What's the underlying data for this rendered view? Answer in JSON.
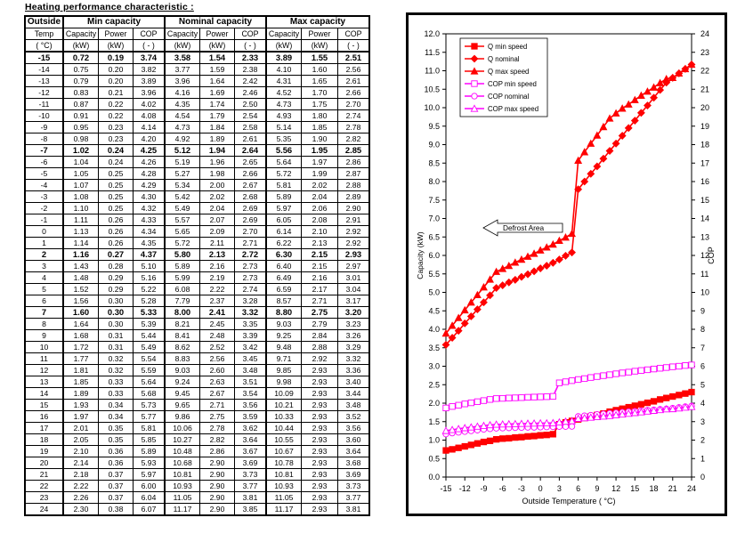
{
  "table": {
    "title": "Heating performance characteristic :",
    "group_headers": [
      "Outside",
      "Min capacity",
      "Nominal capacity",
      "Max capacity"
    ],
    "sub_headers": [
      "Temp",
      "Capacity",
      "Power",
      "COP",
      "Capacity",
      "Power",
      "COP",
      "Capacity",
      "Power",
      "COP"
    ],
    "unit_headers": [
      "( °C)",
      "(kW)",
      "(kW)",
      "( - )",
      "(kW)",
      "(kW)",
      "( - )",
      "(kW)",
      "(kW)",
      "( - )"
    ],
    "bold_temps": [
      "-15",
      "-7",
      "2",
      "7"
    ],
    "rows": [
      [
        "-15",
        "0.72",
        "0.19",
        "3.74",
        "3.58",
        "1.54",
        "2.33",
        "3.89",
        "1.55",
        "2.51"
      ],
      [
        "-14",
        "0.75",
        "0.20",
        "3.82",
        "3.77",
        "1.59",
        "2.38",
        "4.10",
        "1.60",
        "2.56"
      ],
      [
        "-13",
        "0.79",
        "0.20",
        "3.89",
        "3.96",
        "1.64",
        "2.42",
        "4.31",
        "1.65",
        "2.61"
      ],
      [
        "-12",
        "0.83",
        "0.21",
        "3.96",
        "4.16",
        "1.69",
        "2.46",
        "4.52",
        "1.70",
        "2.66"
      ],
      [
        "-11",
        "0.87",
        "0.22",
        "4.02",
        "4.35",
        "1.74",
        "2.50",
        "4.73",
        "1.75",
        "2.70"
      ],
      [
        "-10",
        "0.91",
        "0.22",
        "4.08",
        "4.54",
        "1.79",
        "2.54",
        "4.93",
        "1.80",
        "2.74"
      ],
      [
        "-9",
        "0.95",
        "0.23",
        "4.14",
        "4.73",
        "1.84",
        "2.58",
        "5.14",
        "1.85",
        "2.78"
      ],
      [
        "-8",
        "0.98",
        "0.23",
        "4.20",
        "4.92",
        "1.89",
        "2.61",
        "5.35",
        "1.90",
        "2.82"
      ],
      [
        "-7",
        "1.02",
        "0.24",
        "4.25",
        "5.12",
        "1.94",
        "2.64",
        "5.56",
        "1.95",
        "2.85"
      ],
      [
        "-6",
        "1.04",
        "0.24",
        "4.26",
        "5.19",
        "1.96",
        "2.65",
        "5.64",
        "1.97",
        "2.86"
      ],
      [
        "-5",
        "1.05",
        "0.25",
        "4.28",
        "5.27",
        "1.98",
        "2.66",
        "5.72",
        "1.99",
        "2.87"
      ],
      [
        "-4",
        "1.07",
        "0.25",
        "4.29",
        "5.34",
        "2.00",
        "2.67",
        "5.81",
        "2.02",
        "2.88"
      ],
      [
        "-3",
        "1.08",
        "0.25",
        "4.30",
        "5.42",
        "2.02",
        "2.68",
        "5.89",
        "2.04",
        "2.89"
      ],
      [
        "-2",
        "1.10",
        "0.25",
        "4.32",
        "5.49",
        "2.04",
        "2.69",
        "5.97",
        "2.06",
        "2.90"
      ],
      [
        "-1",
        "1.11",
        "0.26",
        "4.33",
        "5.57",
        "2.07",
        "2.69",
        "6.05",
        "2.08",
        "2.91"
      ],
      [
        "0",
        "1.13",
        "0.26",
        "4.34",
        "5.65",
        "2.09",
        "2.70",
        "6.14",
        "2.10",
        "2.92"
      ],
      [
        "1",
        "1.14",
        "0.26",
        "4.35",
        "5.72",
        "2.11",
        "2.71",
        "6.22",
        "2.13",
        "2.92"
      ],
      [
        "2",
        "1.16",
        "0.27",
        "4.37",
        "5.80",
        "2.13",
        "2.72",
        "6.30",
        "2.15",
        "2.93"
      ],
      [
        "3",
        "1.43",
        "0.28",
        "5.10",
        "5.89",
        "2.16",
        "2.73",
        "6.40",
        "2.15",
        "2.97"
      ],
      [
        "4",
        "1.48",
        "0.29",
        "5.16",
        "5.99",
        "2.19",
        "2.73",
        "6.49",
        "2.16",
        "3.01"
      ],
      [
        "5",
        "1.52",
        "0.29",
        "5.22",
        "6.08",
        "2.22",
        "2.74",
        "6.59",
        "2.17",
        "3.04"
      ],
      [
        "6",
        "1.56",
        "0.30",
        "5.28",
        "7.79",
        "2.37",
        "3.28",
        "8.57",
        "2.71",
        "3.17"
      ],
      [
        "7",
        "1.60",
        "0.30",
        "5.33",
        "8.00",
        "2.41",
        "3.32",
        "8.80",
        "2.75",
        "3.20"
      ],
      [
        "8",
        "1.64",
        "0.30",
        "5.39",
        "8.21",
        "2.45",
        "3.35",
        "9.03",
        "2.79",
        "3.23"
      ],
      [
        "9",
        "1.68",
        "0.31",
        "5.44",
        "8.41",
        "2.48",
        "3.39",
        "9.25",
        "2.84",
        "3.26"
      ],
      [
        "10",
        "1.72",
        "0.31",
        "5.49",
        "8.62",
        "2.52",
        "3.42",
        "9.48",
        "2.88",
        "3.29"
      ],
      [
        "11",
        "1.77",
        "0.32",
        "5.54",
        "8.83",
        "2.56",
        "3.45",
        "9.71",
        "2.92",
        "3.32"
      ],
      [
        "12",
        "1.81",
        "0.32",
        "5.59",
        "9.03",
        "2.60",
        "3.48",
        "9.85",
        "2.93",
        "3.36"
      ],
      [
        "13",
        "1.85",
        "0.33",
        "5.64",
        "9.24",
        "2.63",
        "3.51",
        "9.98",
        "2.93",
        "3.40"
      ],
      [
        "14",
        "1.89",
        "0.33",
        "5.68",
        "9.45",
        "2.67",
        "3.54",
        "10.09",
        "2.93",
        "3.44"
      ],
      [
        "15",
        "1.93",
        "0.34",
        "5.73",
        "9.65",
        "2.71",
        "3.56",
        "10.21",
        "2.93",
        "3.48"
      ],
      [
        "16",
        "1.97",
        "0.34",
        "5.77",
        "9.86",
        "2.75",
        "3.59",
        "10.33",
        "2.93",
        "3.52"
      ],
      [
        "17",
        "2.01",
        "0.35",
        "5.81",
        "10.06",
        "2.78",
        "3.62",
        "10.44",
        "2.93",
        "3.56"
      ],
      [
        "18",
        "2.05",
        "0.35",
        "5.85",
        "10.27",
        "2.82",
        "3.64",
        "10.55",
        "2.93",
        "3.60"
      ],
      [
        "19",
        "2.10",
        "0.36",
        "5.89",
        "10.48",
        "2.86",
        "3.67",
        "10.67",
        "2.93",
        "3.64"
      ],
      [
        "20",
        "2.14",
        "0.36",
        "5.93",
        "10.68",
        "2.90",
        "3.69",
        "10.78",
        "2.93",
        "3.68"
      ],
      [
        "21",
        "2.18",
        "0.37",
        "5.97",
        "10.81",
        "2.90",
        "3.73",
        "10.81",
        "2.93",
        "3.69"
      ],
      [
        "22",
        "2.22",
        "0.37",
        "6.00",
        "10.93",
        "2.90",
        "3.77",
        "10.93",
        "2.93",
        "3.73"
      ],
      [
        "23",
        "2.26",
        "0.37",
        "6.04",
        "11.05",
        "2.90",
        "3.81",
        "11.05",
        "2.93",
        "3.77"
      ],
      [
        "24",
        "2.30",
        "0.38",
        "6.07",
        "11.17",
        "2.90",
        "3.85",
        "11.17",
        "2.93",
        "3.81"
      ]
    ]
  },
  "chart_data": {
    "type": "line",
    "title": "",
    "xlabel": "Outside Temperature ( °C)",
    "ylabel": "Capacity (kW)",
    "y2label": "COP",
    "xlim": [
      -15,
      24
    ],
    "ylim": [
      0.0,
      12.0
    ],
    "y2lim": [
      0,
      24
    ],
    "x_ticks": [
      -15,
      -12,
      -9,
      -6,
      -3,
      0,
      3,
      6,
      9,
      12,
      15,
      18,
      21,
      24
    ],
    "y_ticks": [
      "0.0",
      "0.5",
      "1.0",
      "1.5",
      "2.0",
      "2.5",
      "3.0",
      "3.5",
      "4.0",
      "4.5",
      "5.0",
      "5.5",
      "6.0",
      "6.5",
      "7.0",
      "7.5",
      "8.0",
      "8.5",
      "9.0",
      "9.5",
      "10.0",
      "10.5",
      "11.0",
      "11.5",
      "12.0"
    ],
    "y2_ticks": [
      "0",
      "1",
      "2",
      "3",
      "4",
      "5",
      "6",
      "7",
      "8",
      "9",
      "10",
      "11",
      "12",
      "13",
      "14",
      "15",
      "16",
      "17",
      "18",
      "19",
      "20",
      "21",
      "22",
      "23",
      "24"
    ],
    "x": [
      -15,
      -14,
      -13,
      -12,
      -11,
      -10,
      -9,
      -8,
      -7,
      -6,
      -5,
      -4,
      -3,
      -2,
      -1,
      0,
      1,
      2,
      3,
      4,
      5,
      6,
      7,
      8,
      9,
      10,
      11,
      12,
      13,
      14,
      15,
      16,
      17,
      18,
      19,
      20,
      21,
      22,
      23,
      24
    ],
    "legend_position": "top-left",
    "grid": false,
    "annotation": "Defrost Area",
    "series": [
      {
        "name": "Q min speed",
        "axis": "left",
        "color": "#ff0000",
        "marker": "square",
        "values": [
          0.72,
          0.75,
          0.79,
          0.83,
          0.87,
          0.91,
          0.95,
          0.98,
          1.02,
          1.04,
          1.05,
          1.07,
          1.08,
          1.1,
          1.11,
          1.13,
          1.14,
          1.16,
          1.43,
          1.48,
          1.52,
          1.56,
          1.6,
          1.64,
          1.68,
          1.72,
          1.77,
          1.81,
          1.85,
          1.89,
          1.93,
          1.97,
          2.01,
          2.05,
          2.1,
          2.14,
          2.18,
          2.22,
          2.26,
          2.3
        ]
      },
      {
        "name": "Q nominal",
        "axis": "left",
        "color": "#ff0000",
        "marker": "diamond",
        "values": [
          3.58,
          3.77,
          3.96,
          4.16,
          4.35,
          4.54,
          4.73,
          4.92,
          5.12,
          5.19,
          5.27,
          5.34,
          5.42,
          5.49,
          5.57,
          5.65,
          5.72,
          5.8,
          5.89,
          5.99,
          6.08,
          7.79,
          8.0,
          8.21,
          8.41,
          8.62,
          8.83,
          9.03,
          9.24,
          9.45,
          9.65,
          9.86,
          10.06,
          10.27,
          10.48,
          10.68,
          10.81,
          10.93,
          11.05,
          11.17
        ]
      },
      {
        "name": "Q max speed",
        "axis": "left",
        "color": "#ff0000",
        "marker": "triangle",
        "values": [
          3.89,
          4.1,
          4.31,
          4.52,
          4.73,
          4.93,
          5.14,
          5.35,
          5.56,
          5.64,
          5.72,
          5.81,
          5.89,
          5.97,
          6.05,
          6.14,
          6.22,
          6.3,
          6.4,
          6.49,
          6.59,
          8.57,
          8.8,
          9.03,
          9.25,
          9.48,
          9.71,
          9.85,
          9.98,
          10.09,
          10.21,
          10.33,
          10.44,
          10.55,
          10.67,
          10.78,
          10.81,
          10.93,
          11.05,
          11.17
        ]
      },
      {
        "name": "COP min speed",
        "axis": "right",
        "color": "#ff00ff",
        "marker": "square-open",
        "values": [
          3.74,
          3.82,
          3.89,
          3.96,
          4.02,
          4.08,
          4.14,
          4.2,
          4.25,
          4.26,
          4.28,
          4.29,
          4.3,
          4.32,
          4.33,
          4.34,
          4.35,
          4.37,
          5.1,
          5.16,
          5.22,
          5.28,
          5.33,
          5.39,
          5.44,
          5.49,
          5.54,
          5.59,
          5.64,
          5.68,
          5.73,
          5.77,
          5.81,
          5.85,
          5.89,
          5.93,
          5.97,
          6.0,
          6.04,
          6.07
        ]
      },
      {
        "name": "COP nominal",
        "axis": "right",
        "color": "#ff00ff",
        "marker": "circle-open",
        "values": [
          2.33,
          2.38,
          2.42,
          2.46,
          2.5,
          2.54,
          2.58,
          2.61,
          2.64,
          2.65,
          2.66,
          2.67,
          2.68,
          2.69,
          2.69,
          2.7,
          2.71,
          2.72,
          2.73,
          2.73,
          2.74,
          3.28,
          3.32,
          3.35,
          3.39,
          3.42,
          3.45,
          3.48,
          3.51,
          3.54,
          3.56,
          3.59,
          3.62,
          3.64,
          3.67,
          3.69,
          3.73,
          3.77,
          3.81,
          3.85
        ]
      },
      {
        "name": "COP max speed",
        "axis": "right",
        "color": "#ff00ff",
        "marker": "triangle-open",
        "values": [
          2.51,
          2.56,
          2.61,
          2.66,
          2.7,
          2.74,
          2.78,
          2.82,
          2.85,
          2.86,
          2.87,
          2.88,
          2.89,
          2.9,
          2.91,
          2.92,
          2.92,
          2.93,
          2.97,
          3.01,
          3.04,
          3.17,
          3.2,
          3.23,
          3.26,
          3.29,
          3.32,
          3.36,
          3.4,
          3.44,
          3.48,
          3.52,
          3.56,
          3.6,
          3.64,
          3.68,
          3.69,
          3.73,
          3.77,
          3.81
        ]
      }
    ]
  }
}
